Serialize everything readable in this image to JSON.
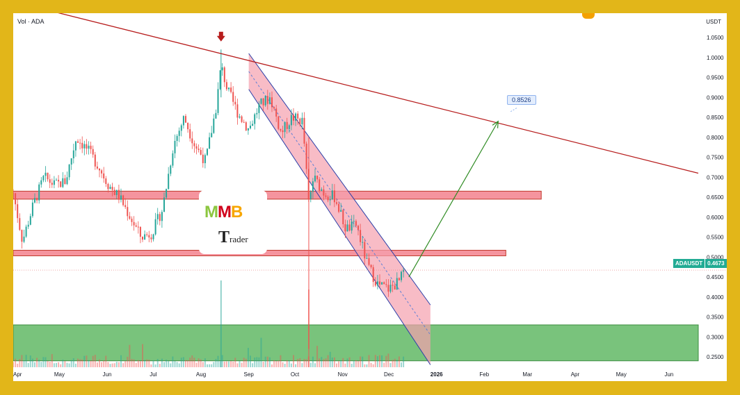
{
  "header": {
    "volume_label": "Vol · ADA",
    "currency": "USDT"
  },
  "price_badge": {
    "symbol": "ADAUSDT",
    "price": "0.4673"
  },
  "target_label": "0.8526",
  "logo": {
    "letters": [
      "M",
      "M",
      "B"
    ],
    "word": "Trader"
  },
  "colors": {
    "up": "#26a69a",
    "down": "#ef5350",
    "resistance_zone": "#f05a6a",
    "support_zone": "#4caf50",
    "trendline": "#b71c1c",
    "arrow": "#2e8b22",
    "channel": "#f5a0ae"
  },
  "chart_data": {
    "type": "candlestick",
    "symbol": "ADAUSDT",
    "x_tick_labels": [
      "Apr",
      "May",
      "Jun",
      "Jul",
      "Aug",
      "Sep",
      "Oct",
      "Nov",
      "Dec",
      "2026",
      "Feb",
      "Mar",
      "Apr",
      "May",
      "Jun"
    ],
    "y_tick_labels": [
      "1.0500",
      "1.0000",
      "0.9500",
      "0.9000",
      "0.8500",
      "0.8000",
      "0.7500",
      "0.7000",
      "0.6500",
      "0.6000",
      "0.5500",
      "0.5000",
      "0.4500",
      "0.4000",
      "0.3500",
      "0.3000",
      "0.2500"
    ],
    "ylim": [
      0.23,
      1.08
    ],
    "xlim": [
      "2025-04-01",
      "2026-06-20"
    ],
    "last_price": 0.4673,
    "target": 0.8526,
    "series": [
      {
        "name": "price",
        "points": [
          [
            "2025-04-01",
            0.66
          ],
          [
            "2025-04-07",
            0.54
          ],
          [
            "2025-04-14",
            0.63
          ],
          [
            "2025-04-21",
            0.7
          ],
          [
            "2025-04-28",
            0.68
          ],
          [
            "2025-05-05",
            0.69
          ],
          [
            "2025-05-12",
            0.8
          ],
          [
            "2025-05-19",
            0.77
          ],
          [
            "2025-05-26",
            0.73
          ],
          [
            "2025-06-02",
            0.68
          ],
          [
            "2025-06-09",
            0.65
          ],
          [
            "2025-06-16",
            0.6
          ],
          [
            "2025-06-23",
            0.55
          ],
          [
            "2025-06-30",
            0.56
          ],
          [
            "2025-07-07",
            0.62
          ],
          [
            "2025-07-14",
            0.78
          ],
          [
            "2025-07-21",
            0.85
          ],
          [
            "2025-07-28",
            0.78
          ],
          [
            "2025-08-04",
            0.74
          ],
          [
            "2025-08-11",
            0.88
          ],
          [
            "2025-08-14",
            0.98
          ],
          [
            "2025-08-18",
            0.92
          ],
          [
            "2025-08-25",
            0.86
          ],
          [
            "2025-09-01",
            0.82
          ],
          [
            "2025-09-08",
            0.88
          ],
          [
            "2025-09-15",
            0.9
          ],
          [
            "2025-09-22",
            0.81
          ],
          [
            "2025-09-29",
            0.85
          ],
          [
            "2025-10-06",
            0.84
          ],
          [
            "2025-10-10",
            0.63
          ],
          [
            "2025-10-13",
            0.7
          ],
          [
            "2025-10-20",
            0.66
          ],
          [
            "2025-10-27",
            0.65
          ],
          [
            "2025-11-03",
            0.57
          ],
          [
            "2025-11-10",
            0.58
          ],
          [
            "2025-11-17",
            0.48
          ],
          [
            "2025-11-24",
            0.43
          ],
          [
            "2025-12-01",
            0.42
          ],
          [
            "2025-12-08",
            0.44
          ],
          [
            "2025-12-11",
            0.4673
          ]
        ]
      }
    ],
    "zones": [
      {
        "kind": "resistance",
        "from": 0.645,
        "to": 0.665,
        "x_end": "2026-03-10"
      },
      {
        "kind": "resistance",
        "from": 0.503,
        "to": 0.517,
        "x_end": "2026-02-15"
      },
      {
        "kind": "support",
        "from": 0.24,
        "to": 0.33,
        "x_end": "2026-06-20"
      }
    ],
    "trendline": [
      [
        "2025-03-01",
        1.17
      ],
      [
        "2026-06-20",
        0.71
      ]
    ],
    "channel": {
      "upper": [
        [
          "2025-09-01",
          1.01
        ],
        [
          "2025-12-28",
          0.38
        ]
      ],
      "lower": [
        [
          "2025-09-01",
          0.92
        ],
        [
          "2025-12-28",
          0.23
        ]
      ]
    },
    "projection": [
      [
        "2025-12-14",
        0.45
      ],
      [
        "2026-02-10",
        0.84
      ]
    ],
    "annotation_arrow": {
      "x": "2025-08-14",
      "price": 1.04
    }
  }
}
